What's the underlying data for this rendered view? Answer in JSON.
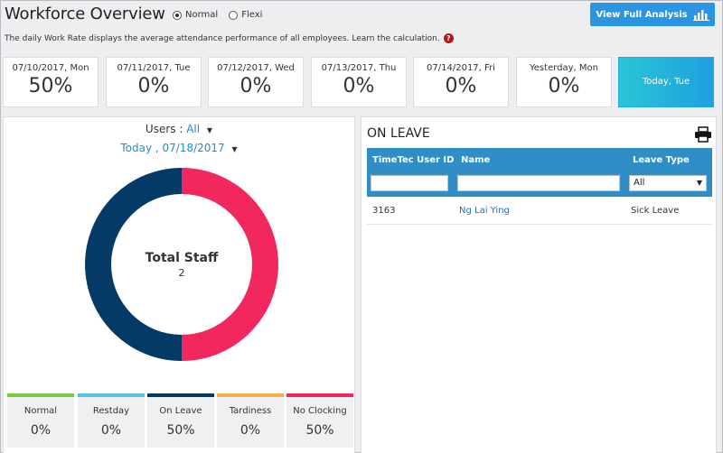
{
  "header": {
    "title": "Workforce Overview",
    "mode_options": [
      {
        "label": "Normal",
        "checked": true
      },
      {
        "label": "Flexi",
        "checked": false
      }
    ],
    "analysis_button": "View Full Analysis",
    "analysis_icon": "bar-chart-icon",
    "description": "The daily Work Rate displays the average attendance performance of all employees. Learn the calculation.",
    "help_icon_glyph": "?"
  },
  "days": [
    {
      "date": "07/10/2017, Mon",
      "value": "50%"
    },
    {
      "date": "07/11/2017, Tue",
      "value": "0%"
    },
    {
      "date": "07/12/2017, Wed",
      "value": "0%"
    },
    {
      "date": "07/13/2017, Thu",
      "value": "0%"
    },
    {
      "date": "07/14/2017, Fri",
      "value": "0%"
    },
    {
      "date": "Yesterday, Mon",
      "value": "0%"
    },
    {
      "date": "Today, Tue",
      "value": ""
    }
  ],
  "summary": {
    "users_label": "Users :",
    "users_value": "All",
    "date_value": "Today , 07/18/2017",
    "donut_title": "Total Staff",
    "donut_count": "2",
    "donut_colors": {
      "left": "#053a66",
      "right": "#f2275d"
    },
    "donut_split_fraction": 0.5
  },
  "stats": [
    {
      "label": "Normal",
      "value": "0%",
      "color": "#7ac943"
    },
    {
      "label": "Restday",
      "value": "0%",
      "color": "#54c3e8"
    },
    {
      "label": "On Leave",
      "value": "50%",
      "color": "#053a66"
    },
    {
      "label": "Tardiness",
      "value": "0%",
      "color": "#f6b04a"
    },
    {
      "label": "No Clocking",
      "value": "50%",
      "color": "#f2275d"
    }
  ],
  "on_leave": {
    "title": "ON LEAVE",
    "print_icon": "print-icon",
    "columns": [
      "TimeTec User ID",
      "Name",
      "Leave Type"
    ],
    "filter_select_value": "All",
    "rows": [
      {
        "id": "3163",
        "name": "Ng Lai Ying",
        "type": "Sick Leave"
      }
    ]
  },
  "colors": {
    "accent": "#2a96e3",
    "table_header": "#2f8ec6",
    "link": "#1c6fb8"
  }
}
